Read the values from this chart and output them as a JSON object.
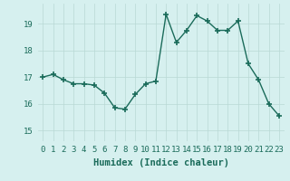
{
  "xlabel": "Humidex (Indice chaleur)",
  "x_values": [
    0,
    1,
    2,
    3,
    4,
    5,
    6,
    7,
    8,
    9,
    10,
    11,
    12,
    13,
    14,
    15,
    16,
    17,
    18,
    19,
    20,
    21,
    22,
    23
  ],
  "y_values": [
    17.0,
    17.1,
    16.9,
    16.75,
    16.75,
    16.7,
    16.4,
    15.85,
    15.8,
    16.35,
    16.75,
    16.85,
    19.35,
    18.3,
    18.75,
    19.3,
    19.1,
    18.75,
    18.75,
    19.1,
    17.5,
    16.9,
    16.0,
    15.55
  ],
  "line_color": "#1a6b5a",
  "marker": "+",
  "marker_size": 4,
  "marker_lw": 1.2,
  "line_width": 1.0,
  "bg_color": "#d6f0ef",
  "grid_color": "#b8d8d5",
  "ylim": [
    14.6,
    19.75
  ],
  "yticks": [
    15,
    16,
    17,
    18,
    19
  ],
  "xlim": [
    -0.5,
    23.5
  ],
  "xlabel_fontsize": 7.5,
  "tick_fontsize": 6.5,
  "tick_color": "#1a6b5a",
  "xlabel_fontweight": "bold"
}
